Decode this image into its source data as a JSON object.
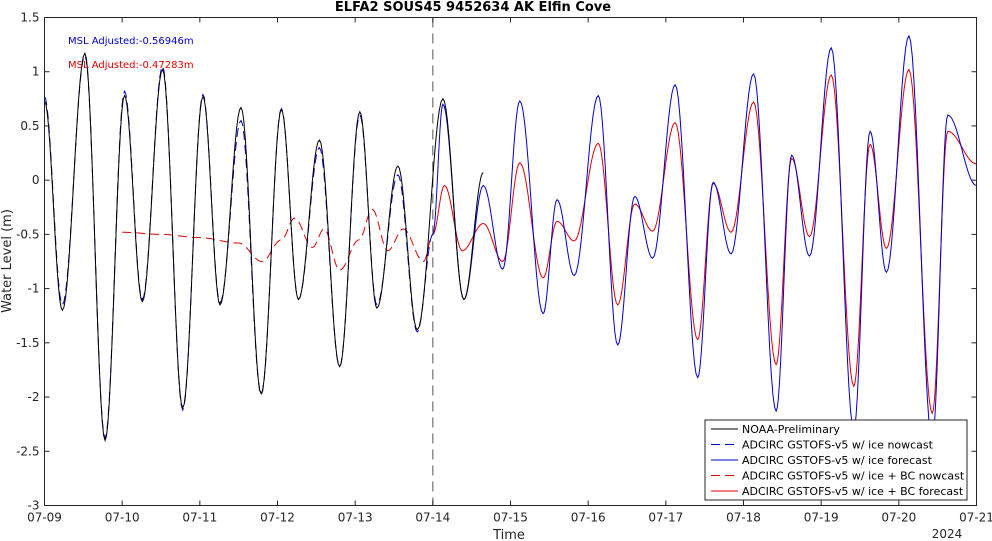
{
  "chart_data": {
    "type": "line",
    "title": "ELFA2 SOUS45 9452634 AK Elfin Cove",
    "xlabel": "Time",
    "ylabel": "Water Level (m)",
    "x_ticks": [
      "07-09",
      "07-10",
      "07-11",
      "07-12",
      "07-13",
      "07-14",
      "07-15",
      "07-16",
      "07-17",
      "07-18",
      "07-19",
      "07-20",
      "07-21"
    ],
    "x_year_label": "2024",
    "xlim": [
      0,
      12
    ],
    "ylim": [
      -3,
      1.5
    ],
    "y_ticks": [
      -3,
      -2.5,
      -2,
      -1.5,
      -1,
      -0.5,
      0,
      0.5,
      1,
      1.5
    ],
    "nowcast_forecast_split": "07-14",
    "annotations": [
      "MSL Adjusted:-0.56946m",
      "MSL Adjusted:-0.47283m"
    ],
    "legend_position": "bottom-right",
    "series": [
      {
        "name": "NOAA-Preliminary",
        "color": "#000000",
        "style": "solid",
        "extrema_day_value": [
          [
            0,
            0.73
          ],
          [
            0.23,
            -1.2
          ],
          [
            0.52,
            1.17
          ],
          [
            0.78,
            -2.4
          ],
          [
            1.03,
            0.78
          ],
          [
            1.26,
            -1.12
          ],
          [
            1.52,
            1.02
          ],
          [
            1.78,
            -2.1
          ],
          [
            2.04,
            0.77
          ],
          [
            2.26,
            -1.15
          ],
          [
            2.53,
            0.67
          ],
          [
            2.79,
            -1.97
          ],
          [
            3.05,
            0.65
          ],
          [
            3.27,
            -1.1
          ],
          [
            3.54,
            0.37
          ],
          [
            3.8,
            -1.72
          ],
          [
            4.06,
            0.63
          ],
          [
            4.28,
            -1.18
          ],
          [
            4.55,
            0.13
          ],
          [
            4.8,
            -1.38
          ],
          [
            5.13,
            0.75
          ],
          [
            5.4,
            -1.1
          ],
          [
            5.65,
            0.07
          ]
        ]
      },
      {
        "name": "ADCIRC GSTOFS-v5 w/ ice nowcast",
        "color": "#0000cc",
        "style": "dashed",
        "extrema_day_value": [
          [
            0,
            0.77
          ],
          [
            0.23,
            -1.15
          ],
          [
            0.52,
            1.15
          ],
          [
            0.78,
            -2.38
          ],
          [
            1.03,
            0.82
          ],
          [
            1.26,
            -1.1
          ],
          [
            1.52,
            1.05
          ],
          [
            1.78,
            -2.12
          ],
          [
            2.04,
            0.79
          ],
          [
            2.26,
            -1.13
          ],
          [
            2.53,
            0.55
          ],
          [
            2.79,
            -1.98
          ],
          [
            3.05,
            0.66
          ],
          [
            3.27,
            -1.1
          ],
          [
            3.54,
            0.3
          ],
          [
            3.8,
            -1.72
          ],
          [
            4.06,
            0.6
          ],
          [
            4.28,
            -1.15
          ],
          [
            4.55,
            0.05
          ],
          [
            4.8,
            -1.4
          ],
          [
            5.0,
            -0.5
          ]
        ]
      },
      {
        "name": "ADCIRC GSTOFS-v5 w/ ice forecast",
        "color": "#0000cc",
        "style": "solid",
        "extrema_day_value": [
          [
            5.0,
            -0.5
          ],
          [
            5.13,
            0.7
          ],
          [
            5.4,
            -1.1
          ],
          [
            5.65,
            -0.05
          ],
          [
            5.9,
            -0.82
          ],
          [
            6.12,
            0.73
          ],
          [
            6.42,
            -1.23
          ],
          [
            6.6,
            -0.18
          ],
          [
            6.82,
            -0.88
          ],
          [
            7.13,
            0.78
          ],
          [
            7.38,
            -1.52
          ],
          [
            7.6,
            -0.15
          ],
          [
            7.83,
            -0.72
          ],
          [
            8.12,
            0.88
          ],
          [
            8.41,
            -1.82
          ],
          [
            8.61,
            -0.02
          ],
          [
            8.84,
            -0.68
          ],
          [
            9.13,
            0.98
          ],
          [
            9.42,
            -2.13
          ],
          [
            9.62,
            0.23
          ],
          [
            9.85,
            -0.7
          ],
          [
            10.13,
            1.22
          ],
          [
            10.42,
            -2.3
          ],
          [
            10.63,
            0.45
          ],
          [
            10.84,
            -0.85
          ],
          [
            11.13,
            1.33
          ],
          [
            11.43,
            -2.4
          ],
          [
            11.63,
            0.6
          ],
          [
            12.0,
            -0.05
          ]
        ]
      },
      {
        "name": "ADCIRC GSTOFS-v5 w/ ice + BC nowcast",
        "color": "#e00000",
        "style": "dashed",
        "extrema_day_value": [
          [
            1.0,
            -0.48
          ],
          [
            1.5,
            -0.5
          ],
          [
            2.0,
            -0.53
          ],
          [
            2.5,
            -0.58
          ],
          [
            2.8,
            -0.75
          ],
          [
            3.05,
            -0.55
          ],
          [
            3.22,
            -0.35
          ],
          [
            3.45,
            -0.62
          ],
          [
            3.6,
            -0.45
          ],
          [
            3.8,
            -0.83
          ],
          [
            4.05,
            -0.55
          ],
          [
            4.22,
            -0.27
          ],
          [
            4.42,
            -0.65
          ],
          [
            4.62,
            -0.45
          ],
          [
            4.88,
            -0.75
          ],
          [
            5.0,
            -0.5
          ]
        ]
      },
      {
        "name": "ADCIRC GSTOFS-v5 w/ ice + BC forecast",
        "color": "#e00000",
        "style": "solid",
        "extrema_day_value": [
          [
            5.0,
            -0.5
          ],
          [
            5.15,
            -0.05
          ],
          [
            5.38,
            -0.65
          ],
          [
            5.65,
            -0.4
          ],
          [
            5.9,
            -0.75
          ],
          [
            6.12,
            0.16
          ],
          [
            6.42,
            -0.9
          ],
          [
            6.6,
            -0.38
          ],
          [
            6.82,
            -0.56
          ],
          [
            7.13,
            0.34
          ],
          [
            7.38,
            -1.15
          ],
          [
            7.6,
            -0.22
          ],
          [
            7.83,
            -0.47
          ],
          [
            8.12,
            0.53
          ],
          [
            8.41,
            -1.47
          ],
          [
            8.61,
            -0.03
          ],
          [
            8.84,
            -0.48
          ],
          [
            9.13,
            0.72
          ],
          [
            9.42,
            -1.7
          ],
          [
            9.62,
            0.2
          ],
          [
            9.85,
            -0.52
          ],
          [
            10.13,
            0.97
          ],
          [
            10.42,
            -1.9
          ],
          [
            10.63,
            0.33
          ],
          [
            10.84,
            -0.63
          ],
          [
            11.13,
            1.02
          ],
          [
            11.43,
            -2.15
          ],
          [
            11.63,
            0.45
          ],
          [
            12.0,
            0.15
          ]
        ]
      }
    ]
  }
}
